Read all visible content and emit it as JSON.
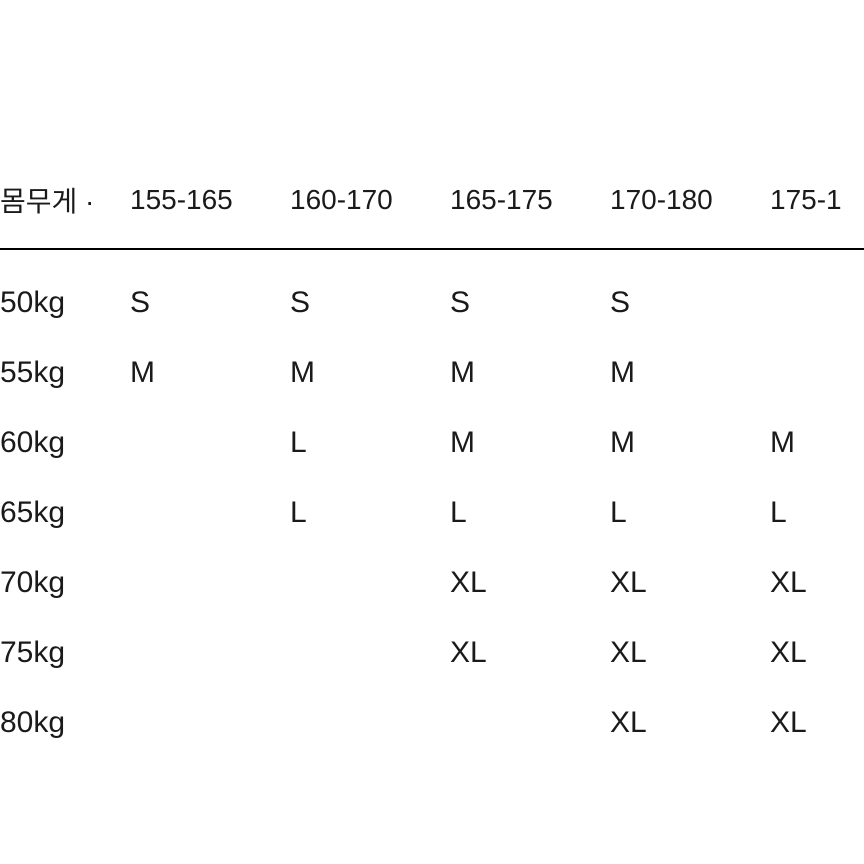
{
  "table": {
    "header_label": "몸무게 ·",
    "columns": [
      "155-165",
      "160-170",
      "165-175",
      "170-180",
      "175-1"
    ],
    "rows": [
      {
        "label": "50kg",
        "cells": [
          "S",
          "S",
          "S",
          "S",
          ""
        ]
      },
      {
        "label": "55kg",
        "cells": [
          "M",
          "M",
          "M",
          "M",
          ""
        ]
      },
      {
        "label": "60kg",
        "cells": [
          "",
          "L",
          "M",
          "M",
          "M"
        ]
      },
      {
        "label": "65kg",
        "cells": [
          "",
          "L",
          "L",
          "L",
          "L"
        ]
      },
      {
        "label": "70kg",
        "cells": [
          "",
          "",
          "XL",
          "XL",
          "XL"
        ]
      },
      {
        "label": "75kg",
        "cells": [
          "",
          "",
          "XL",
          "XL",
          "XL"
        ]
      },
      {
        "label": "80kg",
        "cells": [
          "",
          "",
          "",
          "XL",
          "XL"
        ]
      }
    ]
  }
}
